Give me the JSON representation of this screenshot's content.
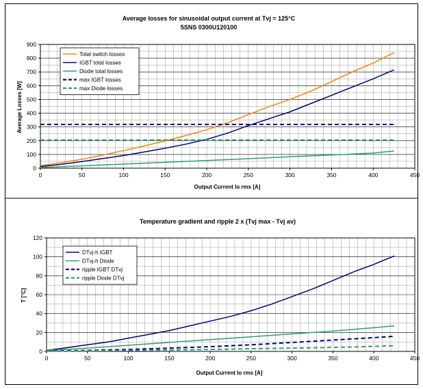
{
  "chart_data": [
    {
      "type": "line",
      "title": "Average losses for sinusoidal output current at Tvj = 125°C",
      "subtitle": "5SNS 0300U120100",
      "xlabel": "Output Current Io rms [A]",
      "ylabel": "Average Losses [W]",
      "xlim": [
        0,
        450
      ],
      "ylim": [
        0,
        900
      ],
      "xticks": [
        "0",
        "50",
        "100",
        "150",
        "200",
        "250",
        "300",
        "350",
        "400",
        "450"
      ],
      "yticks": [
        "0",
        "100",
        "200",
        "300",
        "400",
        "500",
        "600",
        "700",
        "800",
        "900"
      ],
      "grid": true,
      "legend_position": "top-left",
      "series": [
        {
          "name": "Total switch losses",
          "color": "#FF8000",
          "style": "solid",
          "x": [
            0,
            25,
            50,
            75,
            100,
            125,
            150,
            175,
            200,
            225,
            250,
            275,
            300,
            325,
            350,
            375,
            400,
            425
          ],
          "y": [
            18,
            40,
            65,
            95,
            128,
            162,
            198,
            238,
            280,
            330,
            390,
            448,
            500,
            560,
            630,
            700,
            765,
            840
          ]
        },
        {
          "name": "IGBT total losses",
          "color": "#000080",
          "style": "solid",
          "x": [
            0,
            25,
            50,
            75,
            100,
            125,
            150,
            175,
            200,
            225,
            250,
            275,
            300,
            325,
            350,
            375,
            400,
            425
          ],
          "y": [
            12,
            28,
            48,
            70,
            92,
            118,
            145,
            175,
            210,
            255,
            310,
            360,
            410,
            470,
            530,
            590,
            650,
            715
          ]
        },
        {
          "name": "Diode total losses",
          "color": "#2E9E6E",
          "style": "solid",
          "x": [
            0,
            50,
            100,
            150,
            200,
            250,
            300,
            350,
            400,
            425
          ],
          "y": [
            5,
            17,
            30,
            43,
            56,
            69,
            83,
            96,
            110,
            125
          ]
        },
        {
          "name": "max IGBT losses",
          "color": "#000080",
          "style": "dashed",
          "x": [
            0,
            425
          ],
          "y": [
            318,
            318
          ]
        },
        {
          "name": "max Diode losses",
          "color": "#2E9E6E",
          "style": "dashed",
          "x": [
            0,
            425
          ],
          "y": [
            205,
            205
          ]
        }
      ]
    },
    {
      "type": "line",
      "title": "Temperature gradient and ripple 2 x (Tvj max - Tvj av)",
      "xlabel": "Output Current Io rms [A]",
      "ylabel": "T [°C]",
      "xlim": [
        0,
        450
      ],
      "ylim": [
        0,
        120
      ],
      "xticks": [
        "0",
        "50",
        "100",
        "150",
        "200",
        "250",
        "300",
        "350",
        "400",
        "450"
      ],
      "yticks": [
        "0",
        "20",
        "40",
        "60",
        "80",
        "100",
        "120"
      ],
      "grid": true,
      "legend_position": "top-left",
      "series": [
        {
          "name": "DTvj-h IGBT",
          "color": "#000080",
          "style": "solid",
          "x": [
            0,
            25,
            50,
            75,
            100,
            125,
            150,
            175,
            200,
            225,
            250,
            275,
            300,
            325,
            350,
            375,
            400,
            425
          ],
          "y": [
            1,
            4,
            7,
            10,
            14,
            18,
            22,
            27,
            32,
            37,
            43,
            50,
            58,
            66,
            75,
            84,
            92,
            101
          ]
        },
        {
          "name": "DTvj-h Diode",
          "color": "#2E9E6E",
          "style": "solid",
          "x": [
            0,
            50,
            100,
            150,
            200,
            250,
            300,
            350,
            400,
            425
          ],
          "y": [
            1,
            3.5,
            6.5,
            9.5,
            12.5,
            15.5,
            18.5,
            21.5,
            25,
            27
          ]
        },
        {
          "name": "ripple IGBT DTvj",
          "color": "#000080",
          "style": "dashed",
          "x": [
            0,
            50,
            100,
            150,
            200,
            250,
            300,
            350,
            400,
            425
          ],
          "y": [
            0.5,
            1,
            2,
            3.5,
            5,
            7,
            9.5,
            12,
            14.5,
            16
          ]
        },
        {
          "name": "ripple Diode DTvj",
          "color": "#2E9E6E",
          "style": "dashed",
          "x": [
            0,
            50,
            100,
            150,
            200,
            250,
            300,
            350,
            400,
            425
          ],
          "y": [
            0.2,
            0.5,
            1,
            1.5,
            2,
            2.8,
            3.5,
            4.3,
            5.3,
            6
          ]
        }
      ]
    }
  ]
}
